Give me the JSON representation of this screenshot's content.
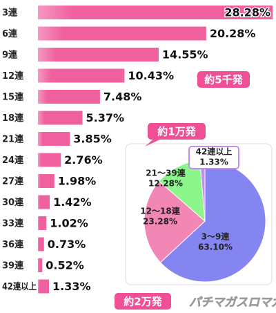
{
  "chart_data": [
    {
      "type": "bar",
      "categories": [
        "3連",
        "6連",
        "9連",
        "12連",
        "15連",
        "18連",
        "21連",
        "24連",
        "27連",
        "30連",
        "33連",
        "36連",
        "39連",
        "42連以上"
      ],
      "values": [
        28.28,
        20.28,
        14.55,
        10.43,
        7.48,
        5.37,
        3.85,
        2.76,
        1.98,
        1.42,
        1.02,
        0.73,
        0.52,
        1.33
      ],
      "value_labels": [
        "28.28%",
        "20.28%",
        "14.55%",
        "10.43%",
        "7.48%",
        "5.37%",
        "3.85%",
        "2.76%",
        "1.98%",
        "1.42%",
        "1.02%",
        "0.73%",
        "0.52%",
        "1.33%"
      ],
      "color": "#f0609f",
      "annotations": [
        "約5千発",
        "約1万発",
        "約2万発"
      ],
      "watermark": "パチマガスロマガ"
    },
    {
      "type": "pie",
      "categories": [
        "3〜9連",
        "12〜18連",
        "21〜39連",
        "42連以上"
      ],
      "values": [
        63.1,
        23.28,
        12.28,
        1.33
      ],
      "value_labels": [
        "63.10%",
        "23.28%",
        "12.28%",
        "1.33%"
      ],
      "colors": [
        "#8585f2",
        "#f287b5",
        "#8cf58c",
        "#c58cf2"
      ]
    }
  ]
}
